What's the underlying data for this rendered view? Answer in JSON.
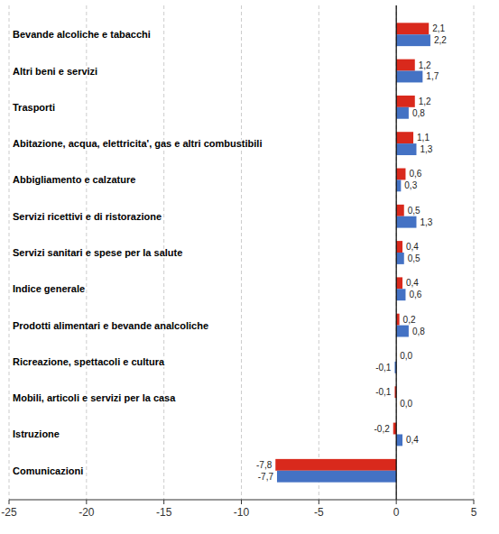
{
  "chart_data": {
    "type": "bar",
    "orientation": "horizontal",
    "categories": [
      "Bevande alcoliche e tabacchi",
      "Altri beni e servizi",
      "Trasporti",
      "Abitazione, acqua, elettricita', gas e altri combustibili",
      "Abbigliamento e calzature",
      "Servizi ricettivi e di ristorazione",
      "Servizi sanitari e spese per la salute",
      "Indice generale",
      "Prodotti alimentari e bevande analcoliche",
      "Ricreazione, spettacoli e cultura",
      "Mobili, articoli e servizi per la casa",
      "Istruzione",
      "Comunicazioni"
    ],
    "series": [
      {
        "color": "#d9291c",
        "values": [
          2.1,
          1.2,
          1.2,
          1.1,
          0.6,
          0.5,
          0.4,
          0.4,
          0.2,
          0.0,
          -0.1,
          -0.2,
          -7.8
        ],
        "value_labels": [
          "2,1",
          "1,2",
          "1,2",
          "1,1",
          "0,6",
          "0,5",
          "0,4",
          "0,4",
          "0,2",
          "0,0",
          "-0,1",
          "-0,2",
          "-7,8"
        ]
      },
      {
        "color": "#4472c4",
        "values": [
          2.2,
          1.7,
          0.8,
          1.3,
          0.3,
          1.3,
          0.5,
          0.6,
          0.8,
          -0.1,
          0.0,
          0.4,
          -7.7
        ],
        "value_labels": [
          "2,2",
          "1,7",
          "0,8",
          "1,3",
          "0,3",
          "1,3",
          "0,5",
          "0,6",
          "0,8",
          "-0,1",
          "0,0",
          "0,4",
          "-7,7"
        ]
      }
    ],
    "xlim": [
      -25,
      5
    ],
    "xticks": [
      -25,
      -20,
      -15,
      -10,
      -5,
      0,
      5
    ],
    "grid": true,
    "data_labels": true
  }
}
